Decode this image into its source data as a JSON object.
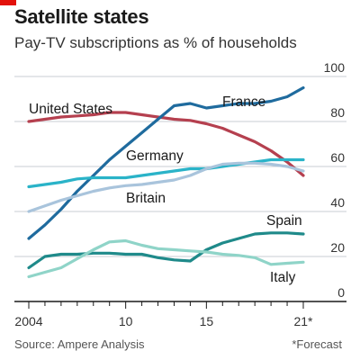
{
  "header": {
    "title": "Satellite states",
    "subtitle": "Pay-TV subscriptions as % of households"
  },
  "footer": {
    "source": "Source: Ampere Analysis",
    "note": "*Forecast"
  },
  "colors": {
    "accent": "#e3120b",
    "grid": "#c8ced3",
    "axis": "#1a1a1a"
  },
  "chart_data": {
    "type": "line",
    "title": "Satellite states",
    "subtitle": "Pay-TV subscriptions as % of households",
    "xlim": [
      2004,
      2021
    ],
    "ylim": [
      0,
      100
    ],
    "yticks": [
      0,
      20,
      40,
      60,
      80,
      100
    ],
    "ytick_labels": [
      "0",
      "20",
      "40",
      "60",
      "80",
      "100"
    ],
    "xticks": [
      2004,
      2010,
      2015,
      2021
    ],
    "xtick_labels": [
      "2004",
      "10",
      "15",
      "21*"
    ],
    "grid": true,
    "x": [
      2004,
      2005,
      2006,
      2007,
      2008,
      2009,
      2010,
      2011,
      2012,
      2013,
      2014,
      2015,
      2016,
      2017,
      2018,
      2019,
      2020,
      2021
    ],
    "series": [
      {
        "name": "United States",
        "color": "#b5404f",
        "values": [
          80,
          81,
          82,
          82.5,
          83,
          84,
          84,
          83,
          82,
          81,
          80.5,
          79,
          77,
          74,
          71,
          67,
          62,
          56
        ]
      },
      {
        "name": "France",
        "color": "#1f6b9e",
        "values": [
          28,
          34,
          41,
          49,
          56,
          63,
          69,
          75,
          81,
          87,
          88,
          86,
          87,
          88,
          88,
          89,
          91,
          95
        ]
      },
      {
        "name": "Germany",
        "color": "#2ab3c8",
        "values": [
          51,
          52,
          53,
          54.5,
          55,
          55,
          55,
          56,
          57,
          58,
          59,
          59,
          60,
          61,
          62,
          63,
          63,
          63
        ]
      },
      {
        "name": "Britain",
        "color": "#a9c4dc",
        "values": [
          40,
          42.5,
          45,
          47,
          49,
          50.5,
          51.5,
          52,
          53,
          54,
          56,
          59,
          61,
          61.5,
          61.5,
          61,
          60,
          58
        ]
      },
      {
        "name": "Spain",
        "color": "#1f8a8a",
        "values": [
          15,
          20,
          21,
          21,
          21.5,
          21.5,
          21,
          21,
          19.5,
          18.5,
          18,
          23,
          26,
          28,
          30,
          30.5,
          30.5,
          30
        ]
      },
      {
        "name": "Italy",
        "color": "#8fd4c8",
        "values": [
          11,
          13,
          15,
          19,
          23,
          26.5,
          27,
          25,
          23.5,
          23,
          22.5,
          22,
          21,
          20.5,
          19.5,
          16.5,
          17,
          17.5
        ]
      }
    ],
    "series_labels": [
      "United States",
      "France",
      "Germany",
      "Britain",
      "Spain",
      "Italy"
    ]
  }
}
